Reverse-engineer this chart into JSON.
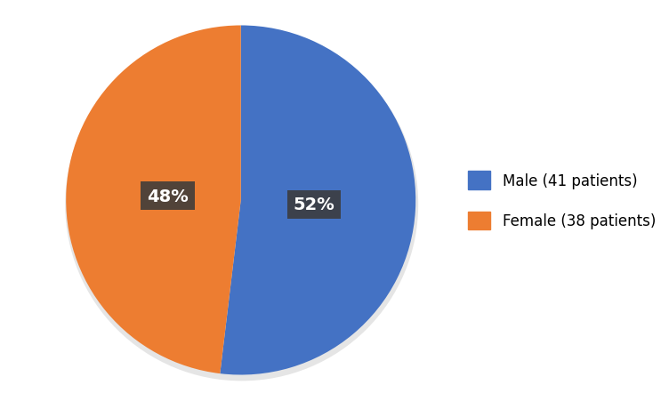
{
  "slices": [
    41,
    38
  ],
  "labels": [
    "Male (41 patients)",
    "Female (38 patients)"
  ],
  "percentages": [
    "52%",
    "48%"
  ],
  "colors": [
    "#4472C4",
    "#ED7D31"
  ],
  "text_bg_color": "#3B3B3B",
  "text_color": "#FFFFFF",
  "background_color": "#FFFFFF",
  "legend_labels": [
    "Male (41 patients)",
    "Female (38 patients)"
  ],
  "startangle": 90,
  "pct_fontsize": 14,
  "legend_fontsize": 12,
  "label_radii": [
    0.42,
    0.42
  ]
}
